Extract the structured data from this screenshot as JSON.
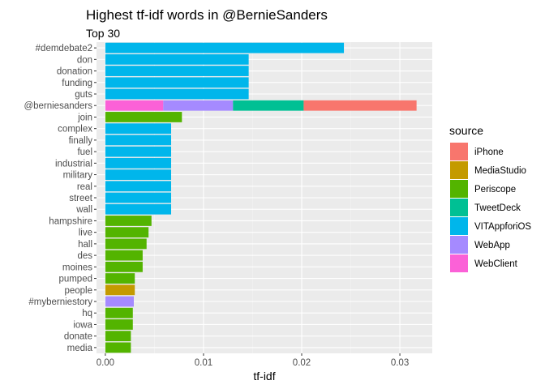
{
  "chart_data": {
    "type": "bar",
    "orientation": "horizontal",
    "stacked": true,
    "title": "Highest tf-idf words in @BernieSanders",
    "subtitle": "Top 30",
    "xlabel": "tf-idf",
    "ylabel": "",
    "xlim": [
      -0.0009,
      0.0333
    ],
    "x_ticks": [
      "0.00",
      "0.01",
      "0.02",
      "0.03"
    ],
    "x_tick_values": [
      0,
      0.01,
      0.02,
      0.03
    ],
    "grid": true,
    "legend_position": "right",
    "legend_title": "source",
    "sources": [
      {
        "name": "iPhone",
        "color": "#F8766D"
      },
      {
        "name": "MediaStudio",
        "color": "#C49A00"
      },
      {
        "name": "Periscope",
        "color": "#53B400"
      },
      {
        "name": "TweetDeck",
        "color": "#00C094"
      },
      {
        "name": "VITAppforiOS",
        "color": "#00B6EB"
      },
      {
        "name": "WebApp",
        "color": "#A58AFF"
      },
      {
        "name": "WebClient",
        "color": "#FB61D7"
      }
    ],
    "stack_order": [
      "WebClient",
      "WebApp",
      "TweetDeck",
      "iPhone",
      "VITAppforiOS",
      "Periscope",
      "MediaStudio"
    ],
    "categories": [
      "#demdebate2",
      "don",
      "donation",
      "funding",
      "guts",
      "@berniesanders",
      "join",
      "complex",
      "finally",
      "fuel",
      "industrial",
      "military",
      "real",
      "street",
      "wall",
      "hampshire",
      "live",
      "hall",
      "des",
      "moines",
      "pumped",
      "people",
      "#myberniestory",
      "hq",
      "iowa",
      "donate",
      "media"
    ],
    "bars": [
      {
        "word": "#demdebate2",
        "segments": [
          {
            "source": "VITAppforiOS",
            "value": 0.0243
          }
        ]
      },
      {
        "word": "don",
        "segments": [
          {
            "source": "VITAppforiOS",
            "value": 0.0146
          }
        ]
      },
      {
        "word": "donation",
        "segments": [
          {
            "source": "VITAppforiOS",
            "value": 0.0146
          }
        ]
      },
      {
        "word": "funding",
        "segments": [
          {
            "source": "VITAppforiOS",
            "value": 0.0146
          }
        ]
      },
      {
        "word": "guts",
        "segments": [
          {
            "source": "VITAppforiOS",
            "value": 0.0146
          }
        ]
      },
      {
        "word": "@berniesanders",
        "segments": [
          {
            "source": "WebClient",
            "value": 0.0059
          },
          {
            "source": "WebApp",
            "value": 0.0071
          },
          {
            "source": "TweetDeck",
            "value": 0.0072
          },
          {
            "source": "iPhone",
            "value": 0.0115
          }
        ]
      },
      {
        "word": "join",
        "segments": [
          {
            "source": "Periscope",
            "value": 0.0078
          }
        ]
      },
      {
        "word": "complex",
        "segments": [
          {
            "source": "VITAppforiOS",
            "value": 0.0067
          }
        ]
      },
      {
        "word": "finally",
        "segments": [
          {
            "source": "VITAppforiOS",
            "value": 0.0067
          }
        ]
      },
      {
        "word": "fuel",
        "segments": [
          {
            "source": "VITAppforiOS",
            "value": 0.0067
          }
        ]
      },
      {
        "word": "industrial",
        "segments": [
          {
            "source": "VITAppforiOS",
            "value": 0.0067
          }
        ]
      },
      {
        "word": "military",
        "segments": [
          {
            "source": "VITAppforiOS",
            "value": 0.0067
          }
        ]
      },
      {
        "word": "real",
        "segments": [
          {
            "source": "VITAppforiOS",
            "value": 0.0067
          }
        ]
      },
      {
        "word": "street",
        "segments": [
          {
            "source": "VITAppforiOS",
            "value": 0.0067
          }
        ]
      },
      {
        "word": "wall",
        "segments": [
          {
            "source": "VITAppforiOS",
            "value": 0.0067
          }
        ]
      },
      {
        "word": "hampshire",
        "segments": [
          {
            "source": "Periscope",
            "value": 0.0047
          }
        ]
      },
      {
        "word": "live",
        "segments": [
          {
            "source": "Periscope",
            "value": 0.0044
          }
        ]
      },
      {
        "word": "hall",
        "segments": [
          {
            "source": "Periscope",
            "value": 0.0042
          }
        ]
      },
      {
        "word": "des",
        "segments": [
          {
            "source": "Periscope",
            "value": 0.0038
          }
        ]
      },
      {
        "word": "moines",
        "segments": [
          {
            "source": "Periscope",
            "value": 0.0038
          }
        ]
      },
      {
        "word": "pumped",
        "segments": [
          {
            "source": "Periscope",
            "value": 0.003
          }
        ]
      },
      {
        "word": "people",
        "segments": [
          {
            "source": "MediaStudio",
            "value": 0.003
          }
        ]
      },
      {
        "word": "#myberniestory",
        "segments": [
          {
            "source": "WebApp",
            "value": 0.0029
          }
        ]
      },
      {
        "word": "hq",
        "segments": [
          {
            "source": "Periscope",
            "value": 0.0028
          }
        ]
      },
      {
        "word": "iowa",
        "segments": [
          {
            "source": "Periscope",
            "value": 0.0028
          }
        ]
      },
      {
        "word": "donate",
        "segments": [
          {
            "source": "Periscope",
            "value": 0.0026
          }
        ]
      },
      {
        "word": "media",
        "segments": [
          {
            "source": "Periscope",
            "value": 0.0026
          }
        ]
      }
    ]
  }
}
